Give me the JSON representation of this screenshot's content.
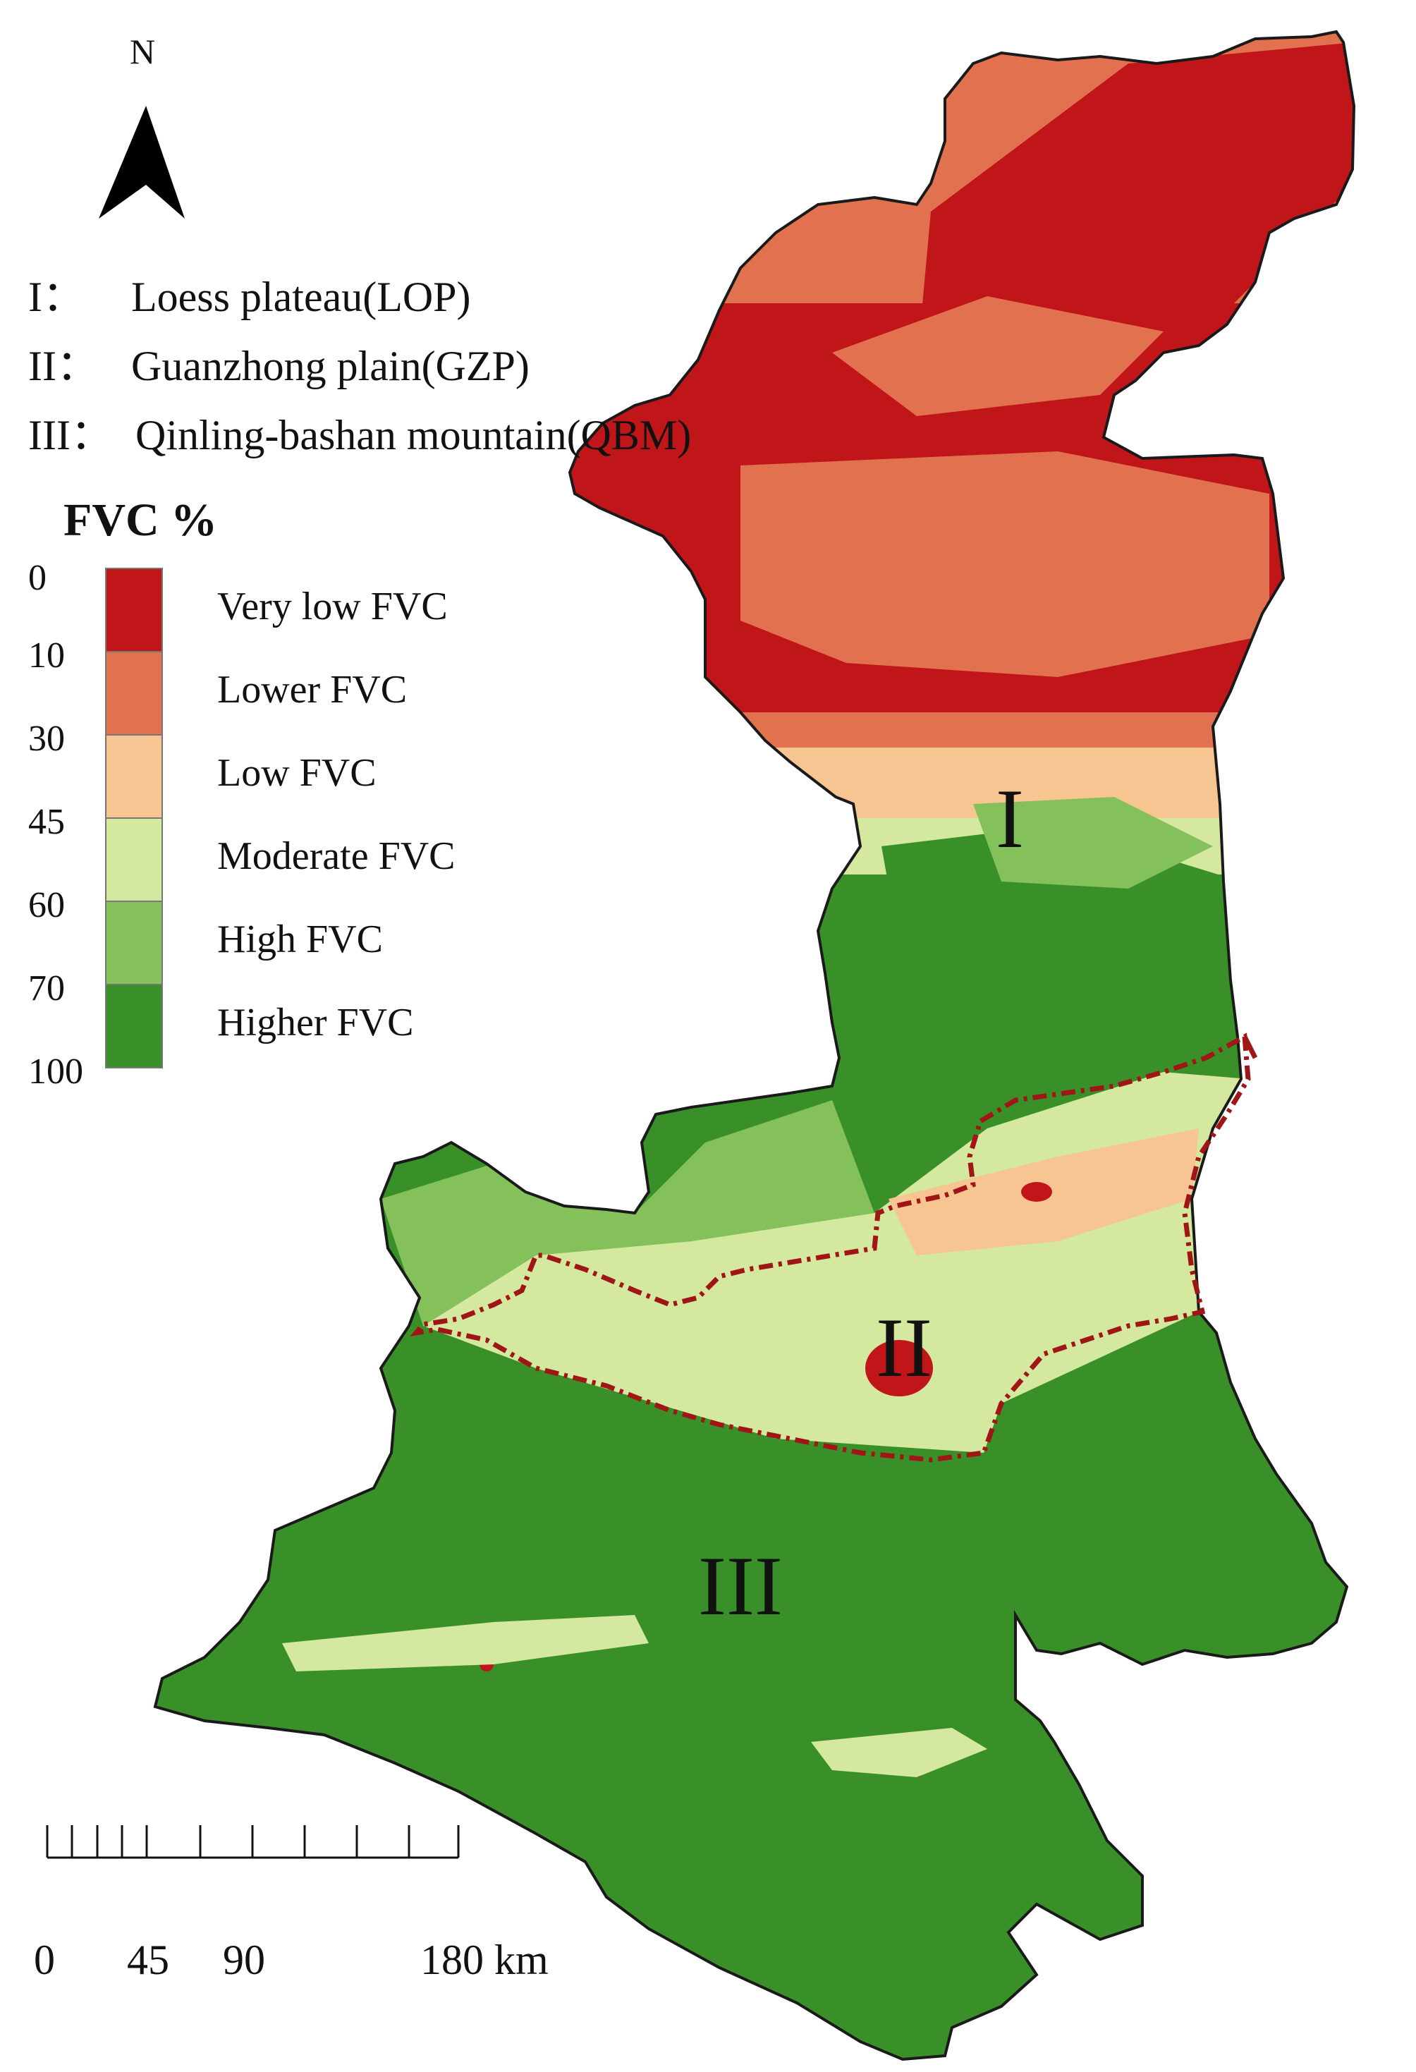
{
  "north_arrow": {
    "letter": "N",
    "icon": "north-arrow-icon"
  },
  "regions": [
    {
      "num": "I：",
      "name": "Loess plateau(LOP)"
    },
    {
      "num": "II：",
      "name": "Guanzhong plain(GZP)"
    },
    {
      "num": "III：",
      "name": "Qinling-bashan mountain(QBM)"
    }
  ],
  "legend": {
    "title": "FVC %",
    "breaks": [
      "0",
      "10",
      "30",
      "45",
      "60",
      "70",
      "100"
    ],
    "classes": [
      {
        "label": "Very low FVC",
        "color": "#c0161a"
      },
      {
        "label": "Lower FVC",
        "color": "#e2714f"
      },
      {
        "label": "Low FVC",
        "color": "#f6c592"
      },
      {
        "label": "Moderate FVC",
        "color": "#d5e8a0"
      },
      {
        "label": "High FVC",
        "color": "#85c15a"
      },
      {
        "label": "Higher FVC",
        "color": "#3a9028"
      }
    ]
  },
  "map_labels": {
    "region_1": "I",
    "region_2": "II",
    "region_3": "III"
  },
  "boundary_color": "#a01616",
  "scale_bar": {
    "labels": [
      "0",
      "45",
      "90",
      "180 km"
    ]
  }
}
